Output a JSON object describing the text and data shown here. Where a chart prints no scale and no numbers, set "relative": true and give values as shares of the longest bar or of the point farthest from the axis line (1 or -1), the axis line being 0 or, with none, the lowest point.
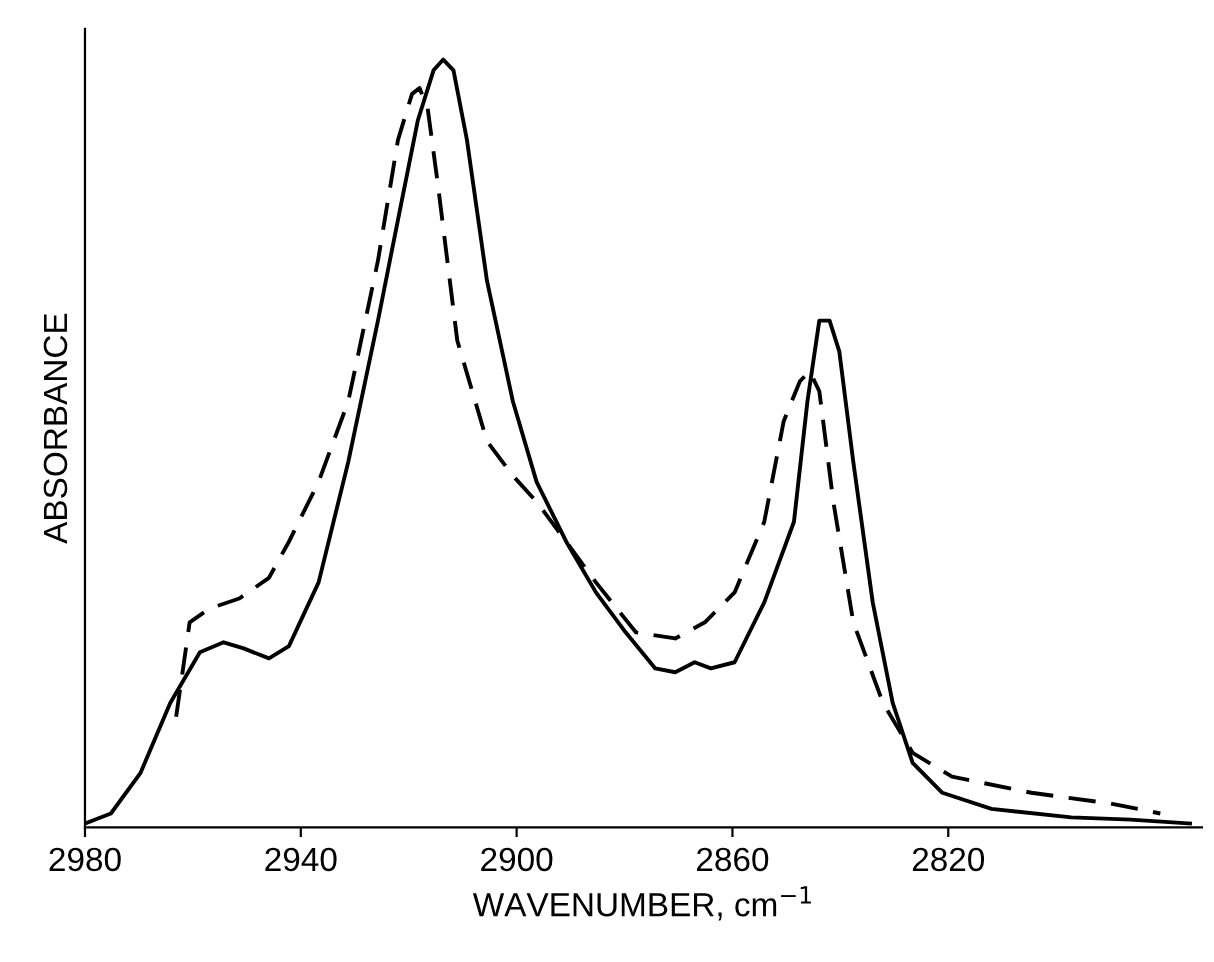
{
  "chart_data": {
    "type": "line",
    "relative": true,
    "xlabel": "WAVENUMBER, cm$^{−1}$",
    "ylabel": "ABSORBANCE",
    "xlim": [
      2980,
      2773
    ],
    "xticks": [
      2980,
      2940,
      2900,
      2860,
      2820
    ],
    "grid": false,
    "marker": "none",
    "series": [
      {
        "color": "#000000",
        "line_style": "solid",
        "x": [
          2980,
          2975.2,
          2969.7,
          2964.2,
          2958.7,
          2954.3,
          2950.6,
          2945.9,
          2942.2,
          2936.7,
          2931.2,
          2925.7,
          2922.0,
          2918.3,
          2915.4,
          2913.6,
          2911.7,
          2909.2,
          2905.5,
          2900.7,
          2896.3,
          2890.8,
          2885.3,
          2879.8,
          2874.3,
          2870.6,
          2867.0,
          2864.0,
          2859.6,
          2854.1,
          2848.6,
          2846.1,
          2843.9,
          2842.0,
          2840.2,
          2837.6,
          2834.0,
          2830.3,
          2826.6,
          2821.1,
          2812.0,
          2797.2,
          2786.2,
          2775.2
        ],
        "values": [
          0.005,
          0.018,
          0.071,
          0.162,
          0.228,
          0.241,
          0.233,
          0.22,
          0.236,
          0.319,
          0.476,
          0.66,
          0.791,
          0.921,
          0.986,
          1.0,
          0.986,
          0.895,
          0.712,
          0.555,
          0.45,
          0.372,
          0.306,
          0.254,
          0.207,
          0.202,
          0.215,
          0.207,
          0.215,
          0.293,
          0.398,
          0.555,
          0.66,
          0.66,
          0.62,
          0.476,
          0.293,
          0.162,
          0.084,
          0.045,
          0.024,
          0.013,
          0.01,
          0.005
        ]
      },
      {
        "color": "#000000",
        "line_style": "dashed",
        "x": [
          2963.1,
          2960.6,
          2956.9,
          2951.4,
          2945.9,
          2942.2,
          2936.7,
          2931.2,
          2925.7,
          2922.0,
          2919.4,
          2918.0,
          2916.5,
          2914.7,
          2911.0,
          2905.5,
          2900.7,
          2896.3,
          2890.8,
          2885.3,
          2877.9,
          2870.6,
          2865.1,
          2859.6,
          2854.1,
          2850.5,
          2847.5,
          2845.7,
          2843.9,
          2841.3,
          2837.6,
          2832.1,
          2826.6,
          2819.3,
          2804.6,
          2789.9,
          2780.7
        ],
        "values": [
          0.144,
          0.267,
          0.285,
          0.298,
          0.325,
          0.372,
          0.45,
          0.555,
          0.738,
          0.895,
          0.955,
          0.963,
          0.937,
          0.843,
          0.634,
          0.503,
          0.458,
          0.424,
          0.372,
          0.319,
          0.254,
          0.246,
          0.267,
          0.306,
          0.398,
          0.529,
          0.581,
          0.594,
          0.568,
          0.424,
          0.267,
          0.162,
          0.097,
          0.066,
          0.045,
          0.031,
          0.018
        ]
      }
    ]
  }
}
